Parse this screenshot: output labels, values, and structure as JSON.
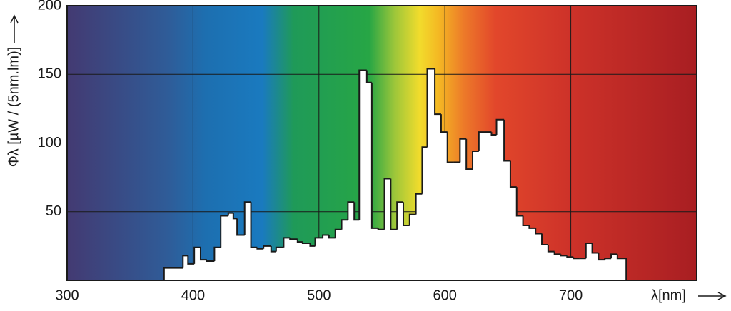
{
  "chart_data": {
    "type": "histogram",
    "x_label": "λ[nm]",
    "y_label": "Φλ [µW / (5nm.lm)]",
    "bins": [
      377,
      392,
      396,
      401,
      406,
      411,
      417,
      422,
      428,
      432,
      435,
      441,
      446,
      451,
      456,
      462,
      466,
      472,
      477,
      483,
      487,
      493,
      497,
      503,
      508,
      513,
      518,
      523,
      528,
      532,
      538,
      542,
      547,
      552,
      557,
      562,
      567,
      572,
      577,
      582,
      586,
      592,
      597,
      602,
      607,
      612,
      617,
      622,
      627,
      632,
      637,
      641,
      647,
      652,
      657,
      662,
      667,
      672,
      677,
      682,
      687,
      692,
      697,
      702,
      707,
      712,
      717,
      722,
      727,
      732,
      737,
      744
    ],
    "values": [
      9,
      18,
      12,
      24,
      15,
      14,
      24,
      47,
      49,
      45,
      33,
      57,
      24,
      23,
      25,
      21,
      24,
      31,
      30,
      28,
      27,
      25,
      31,
      33,
      31,
      37,
      44,
      57,
      44,
      153,
      144,
      38,
      37,
      74,
      37,
      57,
      40,
      48,
      63,
      97,
      154,
      121,
      108,
      86,
      86,
      103,
      81,
      94,
      108,
      108,
      106,
      117,
      87,
      68,
      47,
      40,
      38,
      34,
      26,
      21,
      19,
      18,
      17,
      16,
      16,
      27,
      20,
      15,
      16,
      19,
      16
    ],
    "color": "#ffffff",
    "xlim": [
      300,
      800
    ],
    "xticks": [
      300,
      400,
      500,
      600,
      700
    ],
    "ylim": [
      0,
      200
    ],
    "yticks": [
      50,
      100,
      150,
      200
    ],
    "grid": true
  }
}
